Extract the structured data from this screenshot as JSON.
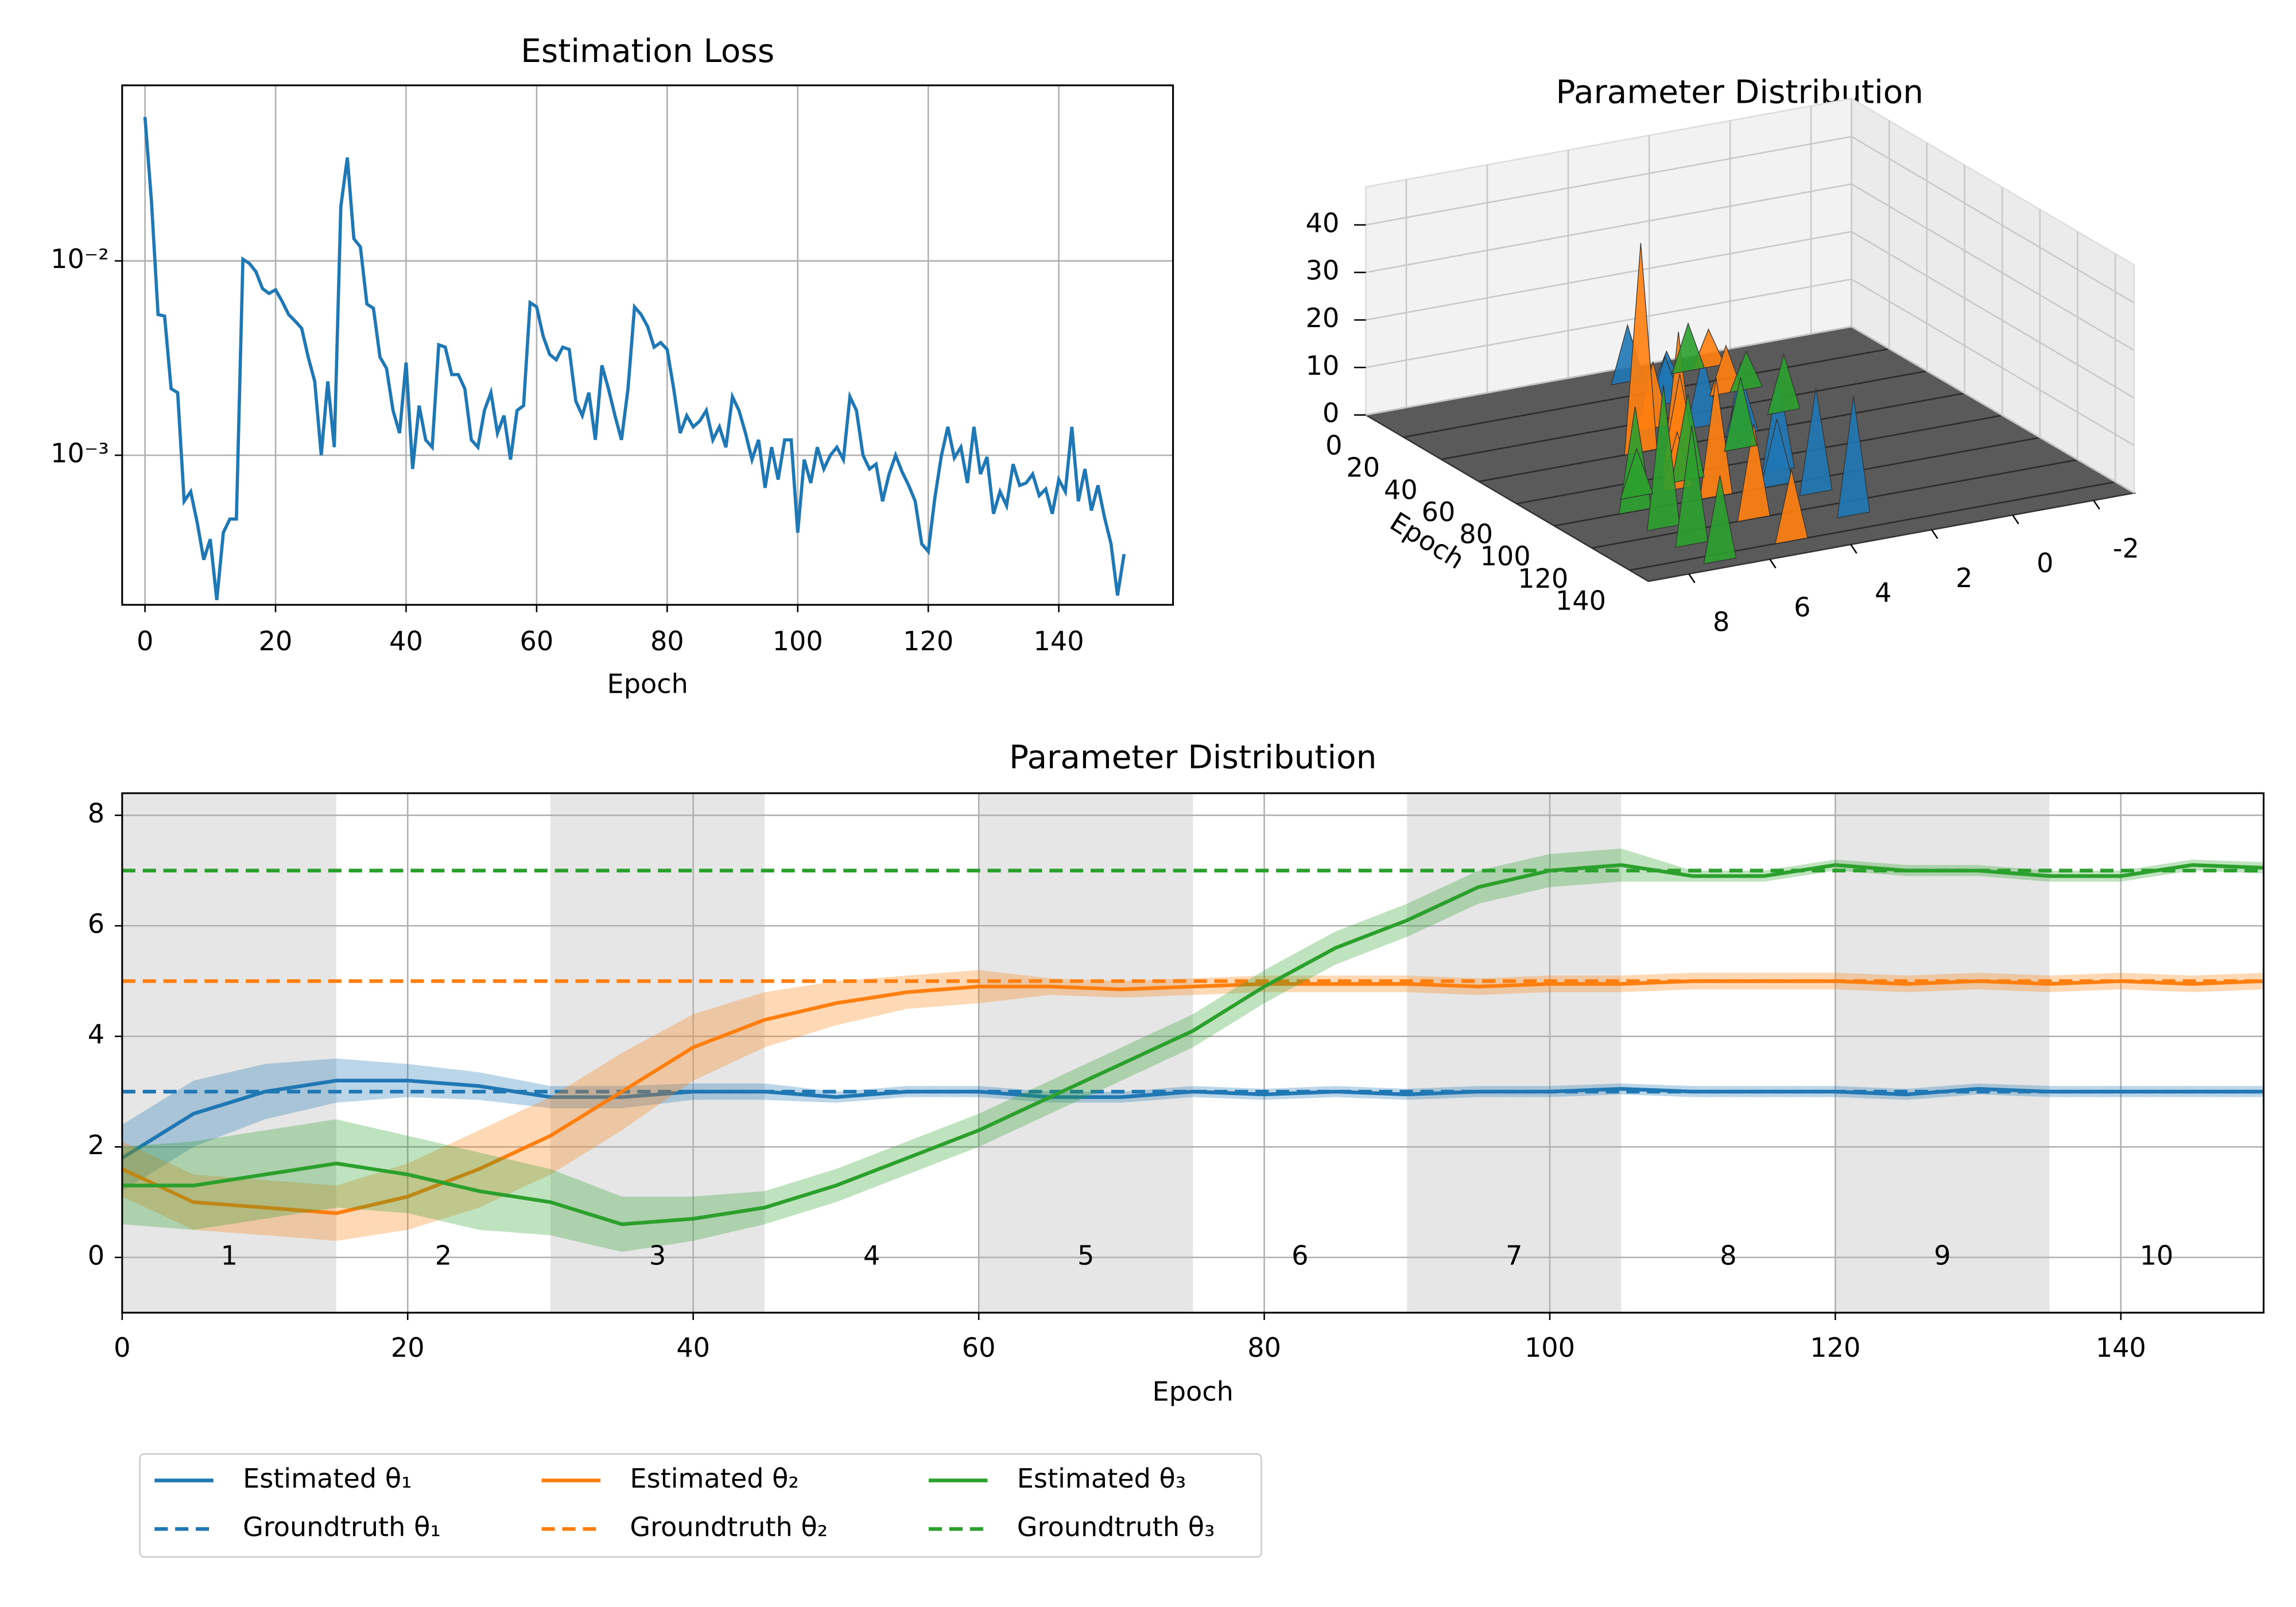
{
  "chart_data": [
    {
      "type": "line",
      "title": "Estimation Loss",
      "xlabel": "Epoch",
      "color": "#1f77b4",
      "yscale": "log",
      "grid": true,
      "xlim": [
        -3.5,
        157.5
      ],
      "xticks": [
        0,
        20,
        40,
        60,
        80,
        100,
        120,
        140
      ],
      "ylim": [
        0.00017,
        0.08
      ],
      "yticks": [
        {
          "value": 0.01,
          "label": "10⁻²"
        },
        {
          "value": 0.001,
          "label": "10⁻³"
        }
      ],
      "x": [
        0,
        1,
        2,
        3,
        4,
        5,
        6,
        7,
        8,
        9,
        10,
        11,
        12,
        13,
        14,
        15,
        16,
        17,
        18,
        19,
        20,
        21,
        22,
        23,
        24,
        25,
        26,
        27,
        28,
        29,
        30,
        31,
        32,
        33,
        34,
        35,
        36,
        37,
        38,
        39,
        40,
        41,
        42,
        43,
        44,
        45,
        46,
        47,
        48,
        49,
        50,
        51,
        52,
        53,
        54,
        55,
        56,
        57,
        58,
        59,
        60,
        61,
        62,
        63,
        64,
        65,
        66,
        67,
        68,
        69,
        70,
        71,
        72,
        73,
        74,
        75,
        76,
        77,
        78,
        79,
        80,
        81,
        82,
        83,
        84,
        85,
        86,
        87,
        88,
        89,
        90,
        91,
        92,
        93,
        94,
        95,
        96,
        97,
        98,
        99,
        100,
        101,
        102,
        103,
        104,
        105,
        106,
        107,
        108,
        109,
        110,
        111,
        112,
        113,
        114,
        115,
        116,
        117,
        118,
        119,
        120,
        121,
        122,
        123,
        124,
        125,
        126,
        127,
        128,
        129,
        130,
        131,
        132,
        133,
        134,
        135,
        136,
        137,
        138,
        139,
        140,
        141,
        142,
        143,
        144,
        145,
        146,
        147,
        148,
        149,
        150
      ],
      "values": [
        0.055,
        0.02,
        0.0053,
        0.0052,
        0.0022,
        0.0021,
        0.00058,
        0.00065,
        0.00045,
        0.00029,
        0.00037,
        0.00018,
        0.0004,
        0.00047,
        0.00047,
        0.0102,
        0.0097,
        0.0088,
        0.0072,
        0.0068,
        0.0071,
        0.0062,
        0.0053,
        0.0049,
        0.0045,
        0.0032,
        0.0024,
        0.001,
        0.0024,
        0.0011,
        0.019,
        0.034,
        0.013,
        0.0118,
        0.006,
        0.0057,
        0.0032,
        0.0028,
        0.0017,
        0.0013,
        0.003,
        0.00085,
        0.0018,
        0.0012,
        0.0011,
        0.0037,
        0.0036,
        0.0026,
        0.0026,
        0.0022,
        0.0012,
        0.0011,
        0.0017,
        0.0021,
        0.0013,
        0.0016,
        0.00095,
        0.0017,
        0.0018,
        0.0061,
        0.0058,
        0.0041,
        0.0033,
        0.0031,
        0.0036,
        0.0035,
        0.0019,
        0.0016,
        0.0021,
        0.0012,
        0.0029,
        0.0022,
        0.0016,
        0.0012,
        0.0022,
        0.0058,
        0.0053,
        0.0046,
        0.0036,
        0.0038,
        0.0035,
        0.0022,
        0.0013,
        0.0016,
        0.0014,
        0.0015,
        0.0017,
        0.0012,
        0.0014,
        0.0011,
        0.002,
        0.0017,
        0.0013,
        0.00095,
        0.0012,
        0.00068,
        0.0011,
        0.00075,
        0.0012,
        0.0012,
        0.0004,
        0.00095,
        0.00072,
        0.0011,
        0.00085,
        0.001,
        0.0011,
        0.00095,
        0.002,
        0.0017,
        0.001,
        0.00085,
        0.0009,
        0.00058,
        0.0008,
        0.001,
        0.00082,
        0.0007,
        0.00058,
        0.00035,
        0.00032,
        0.0006,
        0.00099,
        0.0014,
        0.00097,
        0.0011,
        0.00072,
        0.0014,
        0.0008,
        0.00098,
        0.0005,
        0.00065,
        0.00055,
        0.0009,
        0.0007,
        0.00072,
        0.0008,
        0.00062,
        0.00067,
        0.0005,
        0.00075,
        0.00065,
        0.0014,
        0.00058,
        0.00085,
        0.00052,
        0.0007,
        0.00048,
        0.00035,
        0.00019,
        0.00031
      ]
    },
    {
      "type": "surface3d",
      "title": "Parameter Distribution",
      "ylabel": "Epoch",
      "xlim": [
        -3,
        9
      ],
      "xticks": [
        -2,
        0,
        2,
        4,
        6,
        8
      ],
      "ylim": [
        0,
        150
      ],
      "yticks": [
        0,
        20,
        40,
        60,
        80,
        100,
        120,
        140
      ],
      "zlim": [
        0,
        48
      ],
      "zticks": [
        0,
        10,
        20,
        30,
        40
      ],
      "series": [
        {
          "color": "#1f77b4",
          "x": [
            3,
            2.5,
            3,
            3,
            3,
            3,
            3,
            3,
            2.5,
            3.5
          ],
          "y": [
            10,
            20,
            30,
            50,
            70,
            90,
            110,
            130,
            60,
            100
          ],
          "z": [
            12,
            8,
            10,
            15,
            18,
            20,
            22,
            25,
            12,
            14
          ]
        },
        {
          "color": "#ff7f0e",
          "x": [
            1,
            1.5,
            4,
            5,
            5,
            5,
            5,
            5,
            4.5,
            5.5
          ],
          "y": [
            10,
            30,
            45,
            60,
            80,
            100,
            120,
            140,
            70,
            90
          ],
          "z": [
            8,
            10,
            14,
            44,
            30,
            25,
            20,
            15,
            18,
            12
          ]
        },
        {
          "color": "#2ca02c",
          "x": [
            1.5,
            1,
            1,
            3,
            5,
            7,
            7,
            7,
            7,
            6.5
          ],
          "y": [
            10,
            30,
            50,
            70,
            85,
            100,
            115,
            130,
            145,
            90
          ],
          "z": [
            10,
            8,
            12,
            15,
            18,
            22,
            30,
            25,
            18,
            10
          ]
        }
      ]
    },
    {
      "type": "band_line",
      "title": "Parameter Distribution",
      "xlabel": "Epoch",
      "grid": true,
      "legend": "below left",
      "xlim": [
        0,
        150
      ],
      "xticks": [
        0,
        20,
        40,
        60,
        80,
        100,
        120,
        140
      ],
      "ylim": [
        -1,
        8.4
      ],
      "yticks": [
        0,
        2,
        4,
        6,
        8
      ],
      "phases": [
        {
          "label": "1",
          "start": 0,
          "end": 15,
          "shaded": true
        },
        {
          "label": "2",
          "start": 15,
          "end": 30,
          "shaded": false
        },
        {
          "label": "3",
          "start": 30,
          "end": 45,
          "shaded": true
        },
        {
          "label": "4",
          "start": 45,
          "end": 60,
          "shaded": false
        },
        {
          "label": "5",
          "start": 60,
          "end": 75,
          "shaded": true
        },
        {
          "label": "6",
          "start": 75,
          "end": 90,
          "shaded": false
        },
        {
          "label": "7",
          "start": 90,
          "end": 105,
          "shaded": true
        },
        {
          "label": "8",
          "start": 105,
          "end": 120,
          "shaded": false
        },
        {
          "label": "9",
          "start": 120,
          "end": 135,
          "shaded": true
        },
        {
          "label": "10",
          "start": 135,
          "end": 150,
          "shaded": false
        }
      ],
      "x": [
        0,
        5,
        10,
        15,
        20,
        25,
        30,
        35,
        40,
        45,
        50,
        55,
        60,
        65,
        70,
        75,
        80,
        85,
        90,
        95,
        100,
        105,
        110,
        115,
        120,
        125,
        130,
        135,
        140,
        145,
        150
      ],
      "series": [
        {
          "name": "Estimated θ₁",
          "color": "#1f77b4",
          "linestyle": "solid",
          "values": [
            1.8,
            2.6,
            3.0,
            3.2,
            3.2,
            3.1,
            2.9,
            2.9,
            3.0,
            3.0,
            2.9,
            3.0,
            3.0,
            2.9,
            2.9,
            3.0,
            2.95,
            3.0,
            2.95,
            3.0,
            3.0,
            3.05,
            3.0,
            3.0,
            3.0,
            2.95,
            3.05,
            3.0,
            3.0,
            3.0,
            3.0
          ],
          "lower": [
            1.2,
            2.0,
            2.5,
            2.8,
            2.9,
            2.85,
            2.7,
            2.7,
            2.85,
            2.85,
            2.8,
            2.9,
            2.9,
            2.8,
            2.8,
            2.9,
            2.85,
            2.9,
            2.85,
            2.9,
            2.9,
            2.95,
            2.9,
            2.9,
            2.9,
            2.85,
            2.95,
            2.9,
            2.9,
            2.9,
            2.9
          ],
          "upper": [
            2.4,
            3.2,
            3.5,
            3.6,
            3.5,
            3.35,
            3.1,
            3.1,
            3.15,
            3.15,
            3.0,
            3.1,
            3.1,
            3.0,
            3.0,
            3.1,
            3.05,
            3.1,
            3.05,
            3.1,
            3.1,
            3.15,
            3.1,
            3.1,
            3.1,
            3.05,
            3.15,
            3.1,
            3.1,
            3.1,
            3.1
          ]
        },
        {
          "name": "Groundtruth θ₁",
          "color": "#1f77b4",
          "linestyle": "dashed",
          "value": 3
        },
        {
          "name": "Estimated θ₂",
          "color": "#ff7f0e",
          "linestyle": "solid",
          "values": [
            1.6,
            1.0,
            0.9,
            0.8,
            1.1,
            1.6,
            2.2,
            3.0,
            3.8,
            4.3,
            4.6,
            4.8,
            4.9,
            4.9,
            4.85,
            4.9,
            4.95,
            4.95,
            4.95,
            4.9,
            4.95,
            4.95,
            5.0,
            5.0,
            5.0,
            4.95,
            5.0,
            4.95,
            5.0,
            4.95,
            5.0
          ],
          "lower": [
            1.1,
            0.5,
            0.4,
            0.3,
            0.5,
            0.9,
            1.5,
            2.3,
            3.2,
            3.8,
            4.2,
            4.5,
            4.6,
            4.75,
            4.7,
            4.75,
            4.8,
            4.8,
            4.8,
            4.75,
            4.8,
            4.8,
            4.85,
            4.85,
            4.85,
            4.8,
            4.85,
            4.8,
            4.85,
            4.8,
            4.85
          ],
          "upper": [
            2.1,
            1.5,
            1.4,
            1.3,
            1.7,
            2.3,
            2.9,
            3.7,
            4.4,
            4.8,
            5.0,
            5.1,
            5.2,
            5.05,
            5.0,
            5.05,
            5.1,
            5.1,
            5.1,
            5.05,
            5.1,
            5.1,
            5.15,
            5.15,
            5.15,
            5.1,
            5.15,
            5.1,
            5.15,
            5.1,
            5.15
          ]
        },
        {
          "name": "Groundtruth θ₂",
          "color": "#ff7f0e",
          "linestyle": "dashed",
          "value": 5
        },
        {
          "name": "Estimated θ₃",
          "color": "#2ca02c",
          "linestyle": "solid",
          "values": [
            1.3,
            1.3,
            1.5,
            1.7,
            1.5,
            1.2,
            1.0,
            0.6,
            0.7,
            0.9,
            1.3,
            1.8,
            2.3,
            2.9,
            3.5,
            4.1,
            4.9,
            5.6,
            6.1,
            6.7,
            7.0,
            7.1,
            6.9,
            6.9,
            7.1,
            7.0,
            7.0,
            6.9,
            6.9,
            7.1,
            7.05
          ],
          "lower": [
            0.6,
            0.5,
            0.7,
            0.9,
            0.8,
            0.5,
            0.4,
            0.1,
            0.3,
            0.6,
            1.0,
            1.5,
            2.0,
            2.6,
            3.2,
            3.8,
            4.6,
            5.3,
            5.8,
            6.4,
            6.7,
            6.8,
            6.8,
            6.8,
            7.0,
            6.9,
            6.9,
            6.8,
            6.8,
            7.0,
            6.95
          ],
          "upper": [
            2.0,
            2.1,
            2.3,
            2.5,
            2.2,
            1.9,
            1.6,
            1.1,
            1.1,
            1.2,
            1.6,
            2.1,
            2.6,
            3.2,
            3.8,
            4.4,
            5.2,
            5.9,
            6.4,
            7.0,
            7.3,
            7.4,
            7.0,
            7.0,
            7.2,
            7.1,
            7.1,
            7.0,
            7.0,
            7.2,
            7.15
          ]
        },
        {
          "name": "Groundtruth θ₃",
          "color": "#2ca02c",
          "linestyle": "dashed",
          "value": 7
        }
      ]
    }
  ]
}
